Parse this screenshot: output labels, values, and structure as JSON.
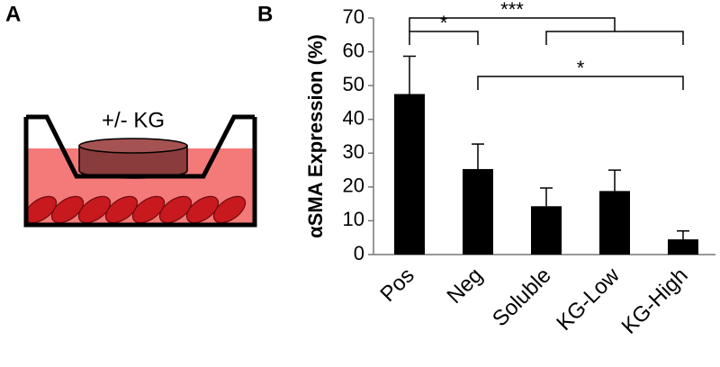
{
  "panels": {
    "a": "A",
    "b": "B"
  },
  "diagram": {
    "label": "+/- KG"
  },
  "chart_data": {
    "type": "bar",
    "y_label": "αSMA Expression (%)",
    "categories": [
      "Pos",
      "Neg",
      "Soluble",
      "KG-Low",
      "KG-High"
    ],
    "values": [
      47.5,
      25.3,
      14.3,
      18.8,
      4.5
    ],
    "errors": [
      11.2,
      7.4,
      5.4,
      6.2,
      2.5
    ],
    "color": "#000000",
    "ylim": [
      0,
      70
    ],
    "yticks": [
      0,
      10,
      20,
      30,
      40,
      50,
      60,
      70
    ],
    "annotations": [
      {
        "text": "*"
      },
      {
        "text": "***"
      },
      {
        "text": "*"
      }
    ]
  }
}
